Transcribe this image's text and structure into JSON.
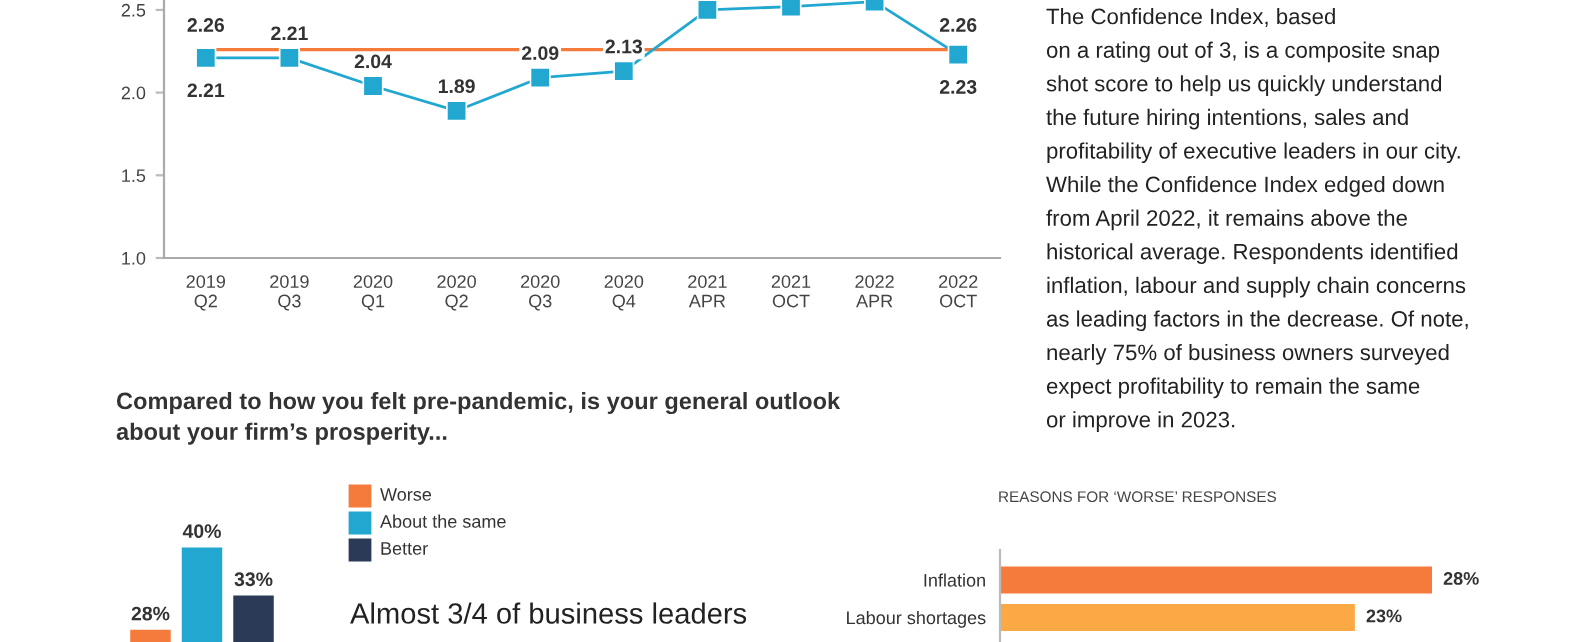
{
  "chart_data": [
    {
      "type": "line",
      "categories": [
        "2019\nQ2",
        "2019\nQ3",
        "2020\nQ1",
        "2020\nQ2",
        "2020\nQ3",
        "2020\nQ4",
        "2021\nAPR",
        "2021\nOCT",
        "2022\nAPR",
        "2022\nOCT"
      ],
      "series": [
        {
          "color": "#22a7d0",
          "values": [
            2.21,
            2.21,
            2.04,
            1.89,
            2.09,
            2.13,
            2.5,
            2.52,
            2.55,
            2.23
          ],
          "value_labels": [
            "2.21",
            "2.21",
            "2.04",
            "1.89",
            "2.09",
            "2.13",
            null,
            null,
            null,
            "2.23"
          ]
        }
      ],
      "marker": "square",
      "line_style": "solid",
      "ylim": [
        1.0,
        2.56
      ],
      "yticks": [
        {
          "value": 1.0,
          "label": "1.0"
        },
        {
          "value": 1.5,
          "label": "1.5"
        },
        {
          "value": 2.0,
          "label": "2.0"
        },
        {
          "value": 2.5,
          "label": "2.5"
        }
      ],
      "ref_lines": [
        {
          "axis": "y",
          "value": 2.26,
          "label": "2.26",
          "color": "#f47b3c",
          "line_style": "solid"
        }
      ],
      "grid": false,
      "legend": false,
      "annotations": [
        "The Confidence Index, based\non a rating out of 3, is a composite snap\nshot score to help us quickly understand\nthe future hiring intentions, sales and\nprofitability of executive leaders in our city.\nWhile the Confidence Index edged down\nfrom April 2022, it remains above the\nhistorical average. Respondents identified\ninflation, labour and supply chain concerns\nas leading factors in the decrease. Of note,\nnearly 75% of business owners surveyed\nexpect profitability to remain the same\nor improve in 2023."
      ]
    },
    {
      "type": "bar",
      "title": "Compared to how you felt pre-pandemic, is your general outlook\nabout your firm’s prosperity...",
      "categories": [
        null
      ],
      "series": [
        {
          "name": "Worse",
          "color": "#f47b3c",
          "values": [
            28
          ],
          "value_labels": [
            "28%"
          ]
        },
        {
          "name": "About the same",
          "color": "#22a7d0",
          "values": [
            40
          ],
          "value_labels": [
            "40%"
          ]
        },
        {
          "name": "Better",
          "color": "#2b3a57",
          "values": [
            33
          ],
          "value_labels": [
            "33%"
          ]
        }
      ],
      "legend": "right",
      "tick_labels": false,
      "annotations": [
        "Almost 3/4 of business leaders"
      ]
    },
    {
      "type": "bar",
      "orientation": "horizontal",
      "title": "REASONS FOR ‘WORSE’ RESPONSES",
      "categories": [
        "Inflation",
        "Labour shortages"
      ],
      "values": [
        28,
        23
      ],
      "colors": [
        "#f47b3c",
        "#fba944"
      ],
      "value_labels": [
        "28%",
        "23%"
      ],
      "tick_labels": "y"
    }
  ]
}
